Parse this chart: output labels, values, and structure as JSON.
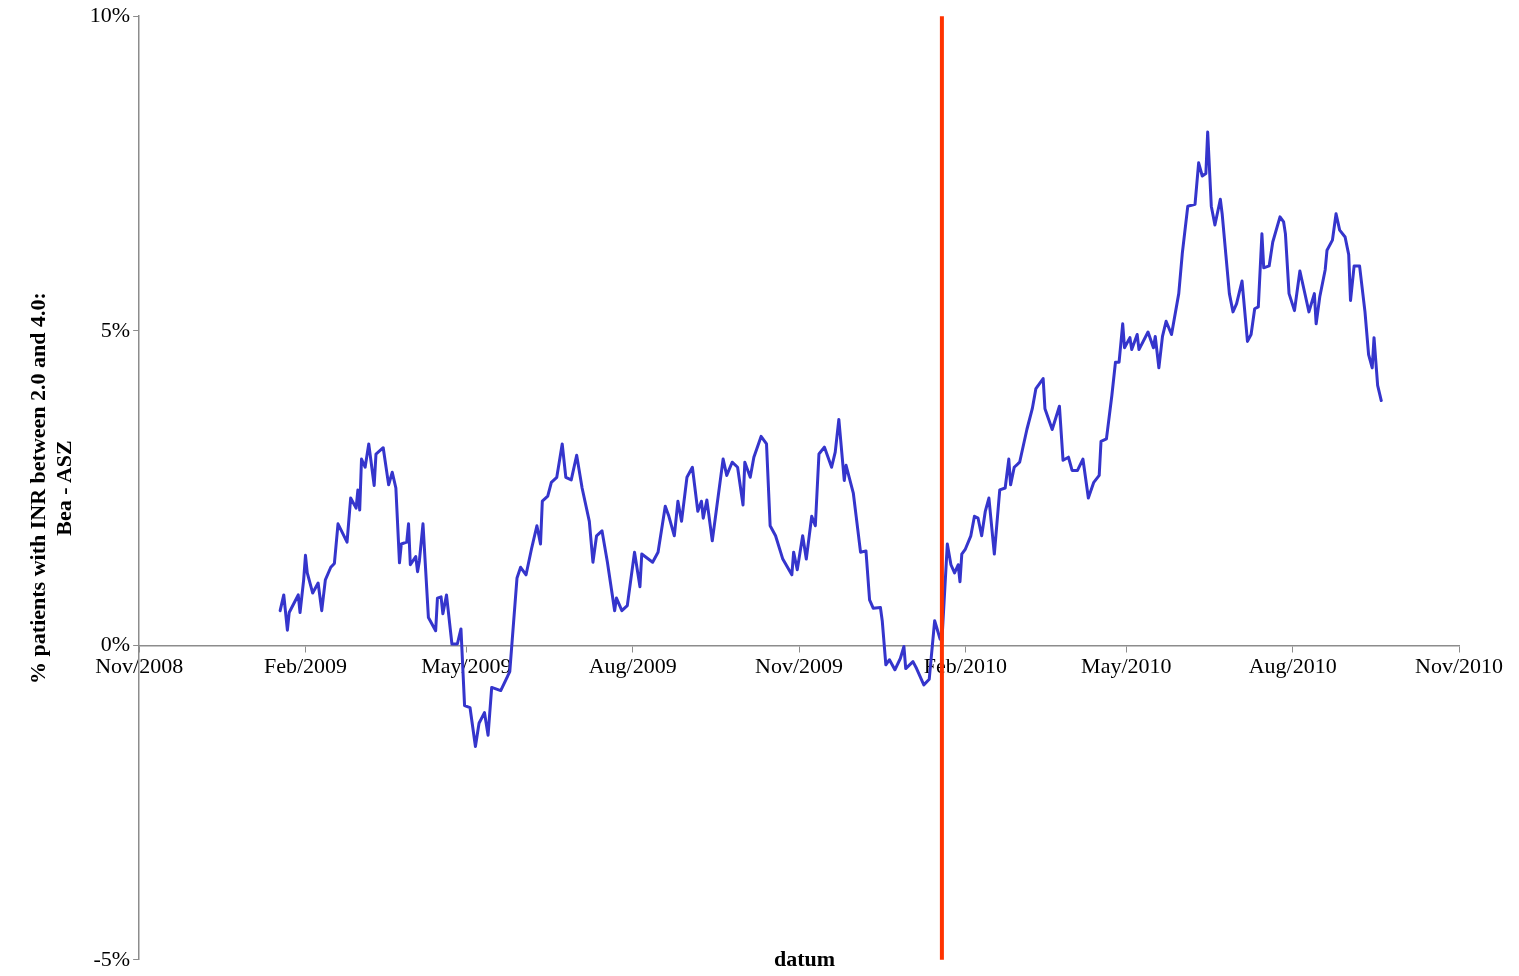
{
  "chart_data": {
    "type": "line",
    "xlabel": "datum",
    "ylabel": "% patients with INR between 2.0 and 4.0:\nBea - ASZ",
    "xlim": [
      "2008-11-01",
      "2010-11-01"
    ],
    "xticks": [
      {
        "value": "2008-11-01",
        "label": "Nov/2008"
      },
      {
        "value": "2009-02-01",
        "label": "Feb/2009"
      },
      {
        "value": "2009-05-01",
        "label": "May/2009"
      },
      {
        "value": "2009-08-01",
        "label": "Aug/2009"
      },
      {
        "value": "2009-11-01",
        "label": "Nov/2009"
      },
      {
        "value": "2010-02-01",
        "label": "Feb/2010"
      },
      {
        "value": "2010-05-01",
        "label": "May/2010"
      },
      {
        "value": "2010-08-01",
        "label": "Aug/2010"
      },
      {
        "value": "2010-11-01",
        "label": "Nov/2010"
      }
    ],
    "ylim": [
      -5,
      10
    ],
    "yticks": [
      {
        "value": -5,
        "label": "-5%"
      },
      {
        "value": 0,
        "label": "0%"
      },
      {
        "value": 5,
        "label": "5%"
      },
      {
        "value": 10,
        "label": "10%"
      }
    ],
    "ref_lines": [
      {
        "axis": "x",
        "value": "2010-01-19",
        "label": null,
        "color": "#ff3300"
      }
    ],
    "x": [
      "2009-01-18",
      "2009-01-20",
      "2009-01-22",
      "2009-01-23",
      "2009-01-28",
      "2009-01-29",
      "2009-01-31",
      "2009-02-01",
      "2009-02-02",
      "2009-02-05",
      "2009-02-08",
      "2009-02-10",
      "2009-02-12",
      "2009-02-15",
      "2009-02-17",
      "2009-02-19",
      "2009-02-24",
      "2009-02-26",
      "2009-03-01",
      "2009-03-02",
      "2009-03-03",
      "2009-03-04",
      "2009-03-06",
      "2009-03-08",
      "2009-03-11",
      "2009-03-12",
      "2009-03-16",
      "2009-03-19",
      "2009-03-21",
      "2009-03-23",
      "2009-03-25",
      "2009-03-26",
      "2009-03-29",
      "2009-03-30",
      "2009-03-31",
      "2009-04-03",
      "2009-04-04",
      "2009-04-05",
      "2009-04-07",
      "2009-04-10",
      "2009-04-14",
      "2009-04-15",
      "2009-04-17",
      "2009-04-18",
      "2009-04-20",
      "2009-04-23",
      "2009-04-26",
      "2009-04-28",
      "2009-04-30",
      "2009-05-03",
      "2009-05-06",
      "2009-05-08",
      "2009-05-11",
      "2009-05-13",
      "2009-05-15",
      "2009-05-20",
      "2009-05-25",
      "2009-05-29",
      "2009-05-31",
      "2009-06-03",
      "2009-06-06",
      "2009-06-09",
      "2009-06-11",
      "2009-06-12",
      "2009-06-15",
      "2009-06-17",
      "2009-06-20",
      "2009-06-23",
      "2009-06-25",
      "2009-06-28",
      "2009-07-01",
      "2009-07-04",
      "2009-07-08",
      "2009-07-10",
      "2009-07-12",
      "2009-07-15",
      "2009-07-18",
      "2009-07-22",
      "2009-07-23",
      "2009-07-26",
      "2009-07-29",
      "2009-08-02",
      "2009-08-05",
      "2009-08-06",
      "2009-08-12",
      "2009-08-15",
      "2009-08-19",
      "2009-08-21",
      "2009-08-24",
      "2009-08-26",
      "2009-08-28",
      "2009-08-31",
      "2009-09-03",
      "2009-09-06",
      "2009-09-08",
      "2009-09-09",
      "2009-09-11",
      "2009-09-14",
      "2009-09-20",
      "2009-09-22",
      "2009-09-25",
      "2009-09-28",
      "2009-10-01",
      "2009-10-02",
      "2009-10-05",
      "2009-10-07",
      "2009-10-11",
      "2009-10-14",
      "2009-10-16",
      "2009-10-19",
      "2009-10-23",
      "2009-10-28",
      "2009-10-29",
      "2009-10-31",
      "2009-11-03",
      "2009-11-05",
      "2009-11-08",
      "2009-11-10",
      "2009-11-12",
      "2009-11-15",
      "2009-11-19",
      "2009-11-21",
      "2009-11-23",
      "2009-11-26",
      "2009-11-27",
      "2009-12-01",
      "2009-12-05",
      "2009-12-08",
      "2009-12-10",
      "2009-12-12",
      "2009-12-16",
      "2009-12-17",
      "2009-12-19",
      "2009-12-21",
      "2009-12-24",
      "2009-12-27",
      "2009-12-29",
      "2009-12-30",
      "2010-01-03",
      "2010-01-05",
      "2010-01-09",
      "2010-01-12",
      "2010-01-15",
      "2010-01-18",
      "2010-01-19",
      "2010-01-22",
      "2010-01-24",
      "2010-01-26",
      "2010-01-28",
      "2010-01-29",
      "2010-01-30",
      "2010-02-01",
      "2010-02-04",
      "2010-02-06",
      "2010-02-08",
      "2010-02-10",
      "2010-02-12",
      "2010-02-14",
      "2010-02-17",
      "2010-02-20",
      "2010-02-23",
      "2010-02-25",
      "2010-02-26",
      "2010-02-28",
      "2010-03-03",
      "2010-03-07",
      "2010-03-10",
      "2010-03-12",
      "2010-03-16",
      "2010-03-17",
      "2010-03-21",
      "2010-03-25",
      "2010-03-27",
      "2010-03-30",
      "2010-04-01",
      "2010-04-04",
      "2010-04-07",
      "2010-04-10",
      "2010-04-13",
      "2010-04-16",
      "2010-04-17",
      "2010-04-20",
      "2010-04-23",
      "2010-04-25",
      "2010-04-27",
      "2010-04-29",
      "2010-04-30",
      "2010-05-03",
      "2010-05-04",
      "2010-05-07",
      "2010-05-08",
      "2010-05-13",
      "2010-05-16",
      "2010-05-17",
      "2010-05-19",
      "2010-05-21",
      "2010-05-23",
      "2010-05-26",
      "2010-05-30",
      "2010-06-01",
      "2010-06-04",
      "2010-06-08",
      "2010-06-10",
      "2010-06-12",
      "2010-06-14",
      "2010-06-15",
      "2010-06-17",
      "2010-06-19",
      "2010-06-22",
      "2010-06-23",
      "2010-06-27",
      "2010-06-29",
      "2010-07-01",
      "2010-07-04",
      "2010-07-07",
      "2010-07-09",
      "2010-07-11",
      "2010-07-13",
      "2010-07-15",
      "2010-07-16",
      "2010-07-19",
      "2010-07-21",
      "2010-07-25",
      "2010-07-27",
      "2010-07-28",
      "2010-07-30",
      "2010-08-02",
      "2010-08-05",
      "2010-08-08",
      "2010-08-10",
      "2010-08-13",
      "2010-08-14",
      "2010-08-16",
      "2010-08-19",
      "2010-08-20",
      "2010-08-23",
      "2010-08-25",
      "2010-08-27",
      "2010-08-30",
      "2010-09-01",
      "2010-09-02",
      "2010-09-04",
      "2010-09-07",
      "2010-09-10",
      "2010-09-12",
      "2010-09-14",
      "2010-09-15",
      "2010-09-17",
      "2010-09-19"
    ],
    "series": [
      {
        "color": "#3535cc",
        "values": [
          0.55,
          0.8,
          0.24,
          0.52,
          0.8,
          0.52,
          1.04,
          1.43,
          1.15,
          0.83,
          0.99,
          0.55,
          1.04,
          1.24,
          1.3,
          1.93,
          1.64,
          2.34,
          2.18,
          2.47,
          2.15,
          2.96,
          2.83,
          3.2,
          2.54,
          3.04,
          3.14,
          2.55,
          2.75,
          2.5,
          1.31,
          1.61,
          1.64,
          1.93,
          1.28,
          1.41,
          1.17,
          1.34,
          1.93,
          0.44,
          0.23,
          0.75,
          0.77,
          0.5,
          0.8,
          0.02,
          0.02,
          0.26,
          -0.96,
          -0.99,
          -1.61,
          -1.24,
          -1.07,
          -1.43,
          -0.67,
          -0.72,
          -0.42,
          1.07,
          1.24,
          1.12,
          1.53,
          1.9,
          1.61,
          2.29,
          2.37,
          2.59,
          2.67,
          3.2,
          2.67,
          2.63,
          3.02,
          2.5,
          1.97,
          1.32,
          1.74,
          1.82,
          1.32,
          0.55,
          0.75,
          0.55,
          0.63,
          1.48,
          0.93,
          1.45,
          1.32,
          1.48,
          2.21,
          2.05,
          1.74,
          2.29,
          1.97,
          2.67,
          2.83,
          2.13,
          2.29,
          2.02,
          2.31,
          1.66,
          2.96,
          2.7,
          2.91,
          2.83,
          2.23,
          2.91,
          2.67,
          2.99,
          3.32,
          3.2,
          1.9,
          1.74,
          1.37,
          1.12,
          1.48,
          1.2,
          1.74,
          1.37,
          2.05,
          1.9,
          3.04,
          3.15,
          2.83,
          3.07,
          3.59,
          2.62,
          2.86,
          2.42,
          1.48,
          1.5,
          0.72,
          0.59,
          0.6,
          0.39,
          -0.31,
          -0.23,
          -0.39,
          -0.21,
          -0.02,
          -0.37,
          -0.26,
          -0.37,
          -0.63,
          -0.54,
          0.39,
          0.1,
          0.07,
          1.61,
          1.28,
          1.15,
          1.28,
          1.01,
          1.45,
          1.53,
          1.74,
          2.05,
          2.02,
          1.74,
          2.13,
          2.34,
          1.45,
          2.47,
          2.5,
          2.96,
          2.55,
          2.83,
          2.91,
          3.43,
          3.76,
          4.08,
          4.24,
          3.76,
          3.43,
          3.8,
          2.94,
          2.99,
          2.78,
          2.78,
          2.96,
          2.34,
          2.59,
          2.7,
          3.24,
          3.28,
          3.97,
          4.5,
          4.5,
          5.11,
          4.73,
          4.89,
          4.7,
          4.94,
          4.7,
          4.98,
          4.73,
          4.91,
          4.41,
          4.91,
          5.15,
          4.94,
          5.59,
          6.24,
          6.98,
          7.01,
          7.67,
          7.46,
          7.5,
          8.16,
          6.98,
          6.68,
          7.09,
          6.86,
          5.59,
          5.3,
          5.43,
          5.79,
          4.83,
          4.94,
          5.35,
          5.38,
          6.54,
          6.0,
          6.03,
          6.41,
          6.81,
          6.73,
          6.54,
          5.59,
          5.32,
          5.95,
          5.56,
          5.3,
          5.59,
          5.11,
          5.54,
          5.97,
          6.28,
          6.44,
          6.86,
          6.6,
          6.49,
          6.21,
          5.48,
          6.03,
          6.03,
          5.3,
          4.62,
          4.41,
          4.89,
          4.13,
          3.89
        ]
      }
    ]
  }
}
